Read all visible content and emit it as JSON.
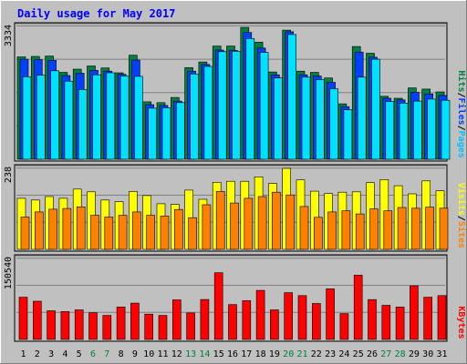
{
  "chart_data": [
    {
      "type": "bar",
      "title": "Daily usage for May 2017",
      "ymax_label": "3334",
      "ymax": 3334,
      "legend": [
        "Pages",
        "Files",
        "Hits"
      ],
      "categories": [
        "1",
        "2",
        "3",
        "4",
        "5",
        "6",
        "7",
        "8",
        "9",
        "10",
        "11",
        "12",
        "13",
        "14",
        "15",
        "16",
        "17",
        "18",
        "19",
        "20",
        "21",
        "22",
        "23",
        "24",
        "25",
        "26",
        "27",
        "28",
        "29",
        "30",
        "31"
      ],
      "weekend_days": [
        "6",
        "7",
        "13",
        "14",
        "20",
        "21",
        "27",
        "28"
      ],
      "series": [
        {
          "name": "Hits",
          "color": "#008040",
          "values": [
            2570,
            2580,
            2590,
            2180,
            2260,
            2340,
            2290,
            2170,
            2610,
            1440,
            1420,
            1550,
            2300,
            2440,
            2840,
            2840,
            3310,
            2940,
            2190,
            3240,
            2210,
            2180,
            2040,
            1390,
            2830,
            2660,
            1580,
            1530,
            1790,
            1760,
            1690
          ]
        },
        {
          "name": "Files",
          "color": "#0040ff",
          "values": [
            2510,
            2500,
            2480,
            2100,
            2160,
            2230,
            2210,
            2130,
            2490,
            1370,
            1350,
            1460,
            2210,
            2380,
            2740,
            2730,
            3180,
            2790,
            2120,
            3200,
            2120,
            2090,
            1930,
            1320,
            2690,
            2560,
            1530,
            1490,
            1680,
            1640,
            1600
          ]
        },
        {
          "name": "Pages",
          "color": "#00e0ff",
          "values": [
            2070,
            2110,
            2220,
            1960,
            1750,
            2120,
            2170,
            2090,
            2080,
            1280,
            1290,
            1420,
            2140,
            2330,
            2700,
            2710,
            3030,
            2680,
            2040,
            3130,
            2060,
            2000,
            1770,
            1240,
            2060,
            2510,
            1450,
            1410,
            1460,
            1510,
            1480
          ]
        }
      ]
    },
    {
      "type": "bar",
      "ymax_label": "238",
      "ymax": 238,
      "legend": [
        "Sites",
        "Visits"
      ],
      "categories": [
        "1",
        "2",
        "3",
        "4",
        "5",
        "6",
        "7",
        "8",
        "9",
        "10",
        "11",
        "12",
        "13",
        "14",
        "15",
        "16",
        "17",
        "18",
        "19",
        "20",
        "21",
        "22",
        "23",
        "24",
        "25",
        "26",
        "27",
        "28",
        "29",
        "30",
        "31"
      ],
      "series": [
        {
          "name": "Visits",
          "color": "#ffff00",
          "values": [
            150,
            145,
            155,
            150,
            177,
            169,
            145,
            140,
            170,
            158,
            134,
            132,
            174,
            147,
            197,
            200,
            200,
            213,
            194,
            238,
            204,
            171,
            164,
            168,
            169,
            196,
            205,
            187,
            163,
            201,
            172
          ]
        },
        {
          "name": "Sites",
          "color": "#ff8000",
          "values": [
            95,
            110,
            118,
            120,
            125,
            100,
            95,
            100,
            110,
            100,
            98,
            117,
            93,
            131,
            170,
            136,
            150,
            155,
            168,
            160,
            126,
            94,
            110,
            113,
            104,
            119,
            113,
            123,
            121,
            124,
            121
          ]
        }
      ]
    },
    {
      "type": "bar",
      "ymax_label": "150540",
      "ymax": 150540,
      "legend": [
        "KBytes"
      ],
      "categories": [
        "1",
        "2",
        "3",
        "4",
        "5",
        "6",
        "7",
        "8",
        "9",
        "10",
        "11",
        "12",
        "13",
        "14",
        "15",
        "16",
        "17",
        "18",
        "19",
        "20",
        "21",
        "22",
        "23",
        "24",
        "25",
        "26",
        "27",
        "28",
        "29",
        "30",
        "31"
      ],
      "series": [
        {
          "name": "KBytes",
          "color": "#ff0000",
          "values": [
            78500,
            71100,
            53200,
            51800,
            55000,
            49600,
            44600,
            60200,
            67500,
            47100,
            44600,
            73600,
            49300,
            74200,
            123900,
            64700,
            72000,
            91100,
            55000,
            86900,
            81500,
            66800,
            94100,
            48100,
            119400,
            74100,
            63400,
            60300,
            99600,
            78500,
            81500
          ]
        }
      ]
    }
  ]
}
